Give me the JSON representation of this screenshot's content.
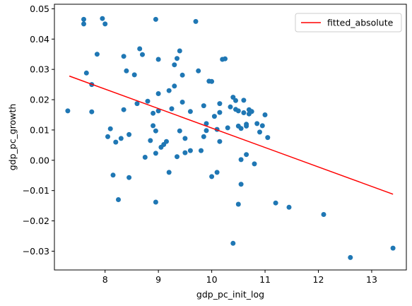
{
  "chart_data": {
    "type": "scatter",
    "xlabel": "gdp_pc_init_log",
    "ylabel": "gdp_pc_growth",
    "xlim": [
      7.05,
      13.65
    ],
    "ylim": [
      -0.0362,
      0.0515
    ],
    "xticks": [
      8,
      9,
      10,
      11,
      12,
      13
    ],
    "yticks": [
      -0.03,
      -0.02,
      -0.01,
      0.0,
      0.01,
      0.02,
      0.03,
      0.04,
      0.05
    ],
    "ytick_labels": [
      "−0.03",
      "−0.02",
      "−0.01",
      "0.00",
      "0.01",
      "0.02",
      "0.03",
      "0.04",
      "0.05"
    ],
    "grid": false,
    "legend": {
      "position": "upper-right",
      "entries": [
        "fitted_absolute"
      ]
    },
    "colors": {
      "points": "#1f77b4",
      "fit": "#ff0000"
    },
    "fit_line": {
      "name": "fitted_absolute",
      "x": [
        7.33,
        13.4
      ],
      "y": [
        0.0278,
        -0.0112
      ]
    },
    "points": {
      "x": [
        7.3,
        7.6,
        7.6,
        7.65,
        7.75,
        7.75,
        7.85,
        7.95,
        8.0,
        8.05,
        8.1,
        8.15,
        8.2,
        8.25,
        8.3,
        8.35,
        8.35,
        8.4,
        8.45,
        8.45,
        8.55,
        8.6,
        8.65,
        8.7,
        8.75,
        8.8,
        8.85,
        8.9,
        8.9,
        8.95,
        8.95,
        8.95,
        8.95,
        9.0,
        9.0,
        9.0,
        9.05,
        9.1,
        9.15,
        9.2,
        9.2,
        9.25,
        9.3,
        9.3,
        9.35,
        9.35,
        9.4,
        9.4,
        9.45,
        9.45,
        9.5,
        9.5,
        9.6,
        9.6,
        9.7,
        9.75,
        9.8,
        9.85,
        9.85,
        9.9,
        9.9,
        9.95,
        10.0,
        10.0,
        10.05,
        10.1,
        10.1,
        10.15,
        10.15,
        10.2,
        10.25,
        10.3,
        10.35,
        10.4,
        10.45,
        10.45,
        10.5,
        10.5,
        10.55,
        10.55,
        10.55,
        10.6,
        10.6,
        10.65,
        10.65,
        10.65,
        10.7,
        10.7,
        10.75,
        10.8,
        10.85,
        10.9,
        10.95,
        11.0,
        11.05,
        11.2,
        11.45,
        12.1,
        12.6,
        13.4,
        10.4,
        10.5,
        10.15
      ],
      "y": [
        0.0163,
        0.045,
        0.0465,
        0.0288,
        0.025,
        0.016,
        0.035,
        0.0468,
        0.045,
        0.0078,
        0.0104,
        -0.0049,
        0.006,
        -0.013,
        0.0072,
        0.0167,
        0.0343,
        0.0295,
        -0.0057,
        0.0085,
        0.0282,
        0.0187,
        0.0368,
        0.0349,
        0.001,
        0.0195,
        0.0065,
        0.0114,
        0.0155,
        0.0097,
        0.0023,
        0.0465,
        -0.0138,
        0.0163,
        0.022,
        0.0333,
        0.0043,
        0.0052,
        0.0062,
        0.023,
        -0.004,
        0.017,
        0.0245,
        0.0315,
        0.0336,
        0.0012,
        0.0361,
        0.0097,
        0.0192,
        0.0281,
        0.0025,
        0.0072,
        0.0161,
        0.0032,
        0.0458,
        0.0295,
        0.0032,
        0.018,
        0.0078,
        0.0098,
        0.0121,
        0.0261,
        -0.0054,
        0.026,
        0.0145,
        0.0102,
        -0.004,
        0.0158,
        0.0062,
        0.0333,
        0.0335,
        0.0107,
        0.0176,
        0.0208,
        0.0168,
        0.0197,
        0.0163,
        0.0113,
        0.0002,
        0.0105,
        -0.0079,
        0.0157,
        0.0198,
        0.0119,
        0.0113,
        0.0019,
        0.0167,
        0.0153,
        0.0161,
        -0.0012,
        0.0121,
        0.0093,
        0.0114,
        0.015,
        0.0075,
        -0.0141,
        -0.0155,
        -0.0179,
        -0.0321,
        -0.029,
        -0.0274,
        -0.0145,
        0.0187
      ]
    }
  }
}
